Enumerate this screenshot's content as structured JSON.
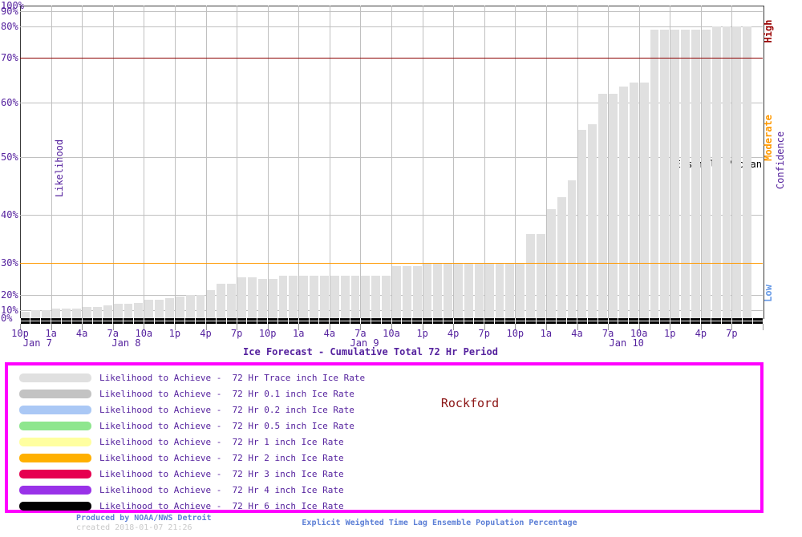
{
  "page": {
    "title": "Ice Forecast - Cumulative Total 72 Hr Period",
    "site": "Rockford",
    "ensemble_label": "Ensemble Median",
    "y_axis_label": "Likelihood",
    "confidence_axis_label": "Confidence",
    "confidence_levels": {
      "high": "High",
      "moderate": "Moderate",
      "low": "Low"
    },
    "footer": {
      "produced_by": "Produced by NOAA/NWS Detroit",
      "created": "created 2018-01-07 21:26",
      "method": "Explicit Weighted Time Lag Ensemble Population Percentage"
    }
  },
  "colors": {
    "text_purple": "#55229e",
    "bar_gray": "#e0e0e0",
    "grid_gray": "#c0c0c0",
    "high_line_red": "#8b0000",
    "moderate_line_orange": "#ff9900",
    "low_blue": "#6699e6",
    "legend_border_magenta": "#ff00ff",
    "site_red": "#8b1515",
    "footer_blue": "#5c7fd6",
    "created_gray": "#c9c9c9",
    "axis_band_black": "#000000"
  },
  "legend": {
    "items": [
      {
        "label": "Likelihood to Achieve -  72 Hr Trace inch Ice Rate",
        "color": "#e0e0e0"
      },
      {
        "label": "Likelihood to Achieve -  72 Hr 0.1 inch Ice Rate",
        "color": "#c3c3c3"
      },
      {
        "label": "Likelihood to Achieve -  72 Hr 0.2 inch Ice Rate",
        "color": "#aac8f5"
      },
      {
        "label": "Likelihood to Achieve -  72 Hr 0.5 inch Ice Rate",
        "color": "#8ee68e"
      },
      {
        "label": "Likelihood to Achieve -  72 Hr 1 inch Ice Rate",
        "color": "#ffffa0"
      },
      {
        "label": "Likelihood to Achieve -  72 Hr 2 inch Ice Rate",
        "color": "#ffb000"
      },
      {
        "label": "Likelihood to Achieve -  72 Hr 3 inch Ice Rate",
        "color": "#e60050"
      },
      {
        "label": "Likelihood to Achieve -  72 Hr 4 inch Ice Rate",
        "color": "#9932e8"
      },
      {
        "label": "Likelihood to Achieve -  72 Hr 6 inch Ice Rate",
        "color": "#000000"
      }
    ]
  },
  "chart_data": {
    "type": "bar",
    "title": "Ice Forecast - Cumulative Total 72 Hr Period",
    "ylabel": "Likelihood",
    "y_scale": "probability, probit-like (middle percentages stretched)",
    "y_ticks_pct": [
      0,
      10,
      20,
      30,
      40,
      50,
      60,
      70,
      80,
      90,
      100
    ],
    "x_tick_labels": [
      "10p",
      "1a",
      "4a",
      "7a",
      "10a",
      "1p",
      "4p",
      "7p",
      "10p",
      "1a",
      "4a",
      "7a",
      "10a",
      "1p",
      "4p",
      "7p",
      "10p",
      "1a",
      "4a",
      "7a",
      "10a",
      "1p",
      "4p",
      "7p"
    ],
    "day_labels": [
      {
        "label": "Jan 7",
        "hour": 1.7
      },
      {
        "label": "Jan 8",
        "hour": 10.3
      },
      {
        "label": "Jan 9",
        "hour": 33.4
      },
      {
        "label": "Jan 10",
        "hour": 58.8
      }
    ],
    "start_time": "10p Jan 7",
    "interval_hours": 1,
    "total_hours": 72,
    "series": [
      {
        "name": "Likelihood to Achieve - 72 Hr Trace inch Ice Rate",
        "color": "#e0e0e0",
        "values": [
          8,
          10,
          10,
          11,
          11,
          11,
          12,
          12,
          13,
          14,
          14,
          15,
          17,
          17,
          18,
          19,
          20,
          20,
          21.5,
          23.5,
          23.5,
          25.5,
          25.5,
          25,
          25,
          26,
          26,
          26,
          26,
          26,
          26,
          26,
          26,
          26,
          26,
          26,
          29,
          29,
          29,
          30,
          30,
          30,
          30,
          30,
          30,
          30,
          30,
          30,
          30,
          36,
          36,
          41,
          43,
          46,
          55,
          56,
          62,
          62,
          63.5,
          64.5,
          64.5,
          79,
          79,
          79,
          79,
          79,
          79,
          80,
          80,
          80,
          80
        ]
      },
      {
        "name": "Ensemble Median",
        "color": "#000000",
        "note": "flat line at 0% along the x-axis",
        "constant_value": 0
      }
    ],
    "reference_lines": [
      {
        "pct": 70,
        "color": "#8b0000",
        "meaning": "High confidence threshold"
      },
      {
        "pct": 30,
        "color": "#ff9900",
        "meaning": "Moderate confidence threshold"
      }
    ],
    "legend_position": "bottom box",
    "grid": true
  }
}
